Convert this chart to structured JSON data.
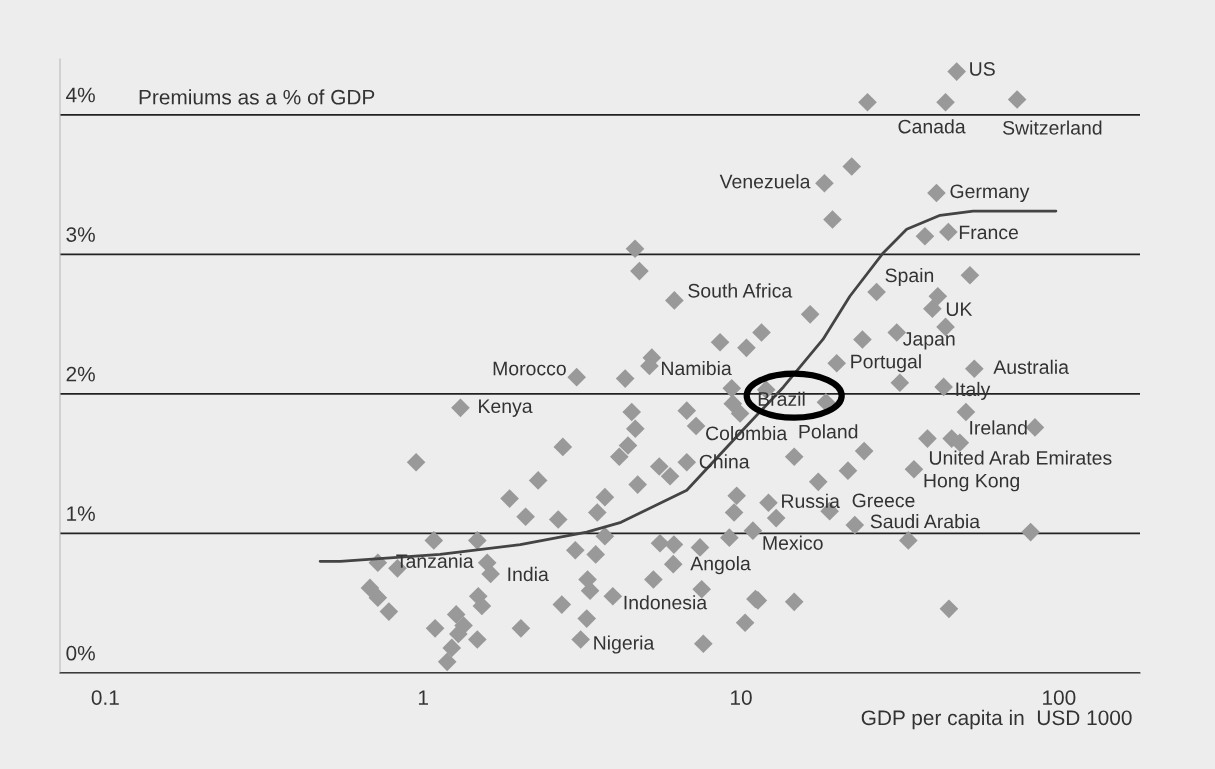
{
  "chart_data": {
    "type": "scatter",
    "ylabel": "Premiums as a % of GDP",
    "xlabel": "GDP per capita in  USD 1000",
    "log": "x",
    "grid": "y",
    "marker": "diamond",
    "xlim": [
      0.072,
      180
    ],
    "xticks": [
      0.1,
      1,
      10,
      100
    ],
    "ylim": [
      0,
      4.4
    ],
    "yticks": [
      {
        "value": 0,
        "label": "0%"
      },
      {
        "value": 1,
        "label": "1%"
      },
      {
        "value": 2,
        "label": "2%"
      },
      {
        "value": 3,
        "label": "3%"
      },
      {
        "value": 4,
        "label": "4%"
      }
    ],
    "series": [
      {
        "color": "#999999",
        "x": [
          1.31,
          4.53,
          6.75,
          9.35,
          9.42,
          9.93,
          7.22,
          4.65,
          2.75,
          4.41,
          4.14,
          0.95,
          5.53,
          5.98,
          6.75,
          2.3,
          4.73,
          3.73,
          1.87,
          3.53,
          9.69,
          9.51,
          2.1,
          2.66,
          10.9,
          1.08,
          1.48,
          3.73,
          9.19,
          5.56,
          6.15,
          7.43,
          3.01,
          3.49,
          0.72,
          0.83,
          1.59,
          1.63,
          6.12,
          3.29,
          3.35,
          5.3,
          7.52,
          11.1,
          0.68,
          0.72,
          0.78,
          1.49,
          1.53,
          2.73,
          3.95,
          3.27,
          1.27,
          1.34,
          1.29,
          1.09,
          2.03,
          1.48,
          1.23,
          1.19,
          3.13,
          7.61,
          10.3,
          12.0,
          18.5,
          14.7,
          24.4,
          21.7,
          17.5,
          35.0,
          38.6,
          46.0,
          48.8,
          51.0,
          84.1,
          12.2,
          12.9,
          19.0,
          22.8,
          33.6,
          81.5,
          11.3,
          14.7,
          45.1,
          43.4,
          31.6,
          47.7,
          25.0,
          44.0,
          73.9,
          22.3,
          18.3,
          41.2,
          19.4,
          37.9,
          44.9,
          52.5,
          26.7,
          41.6,
          40.0,
          44.0,
          30.9,
          24.1,
          20.0,
          54.2,
          16.5,
          11.6,
          10.4,
          4.64,
          4.79,
          6.17,
          8.59,
          5.24,
          5.15,
          4.32,
          3.04
        ],
        "values": [
          1.9,
          1.87,
          1.88,
          2.04,
          1.93,
          1.86,
          1.77,
          1.75,
          1.62,
          1.63,
          1.55,
          1.51,
          1.48,
          1.41,
          1.51,
          1.38,
          1.35,
          1.26,
          1.25,
          1.15,
          1.27,
          1.15,
          1.12,
          1.1,
          1.02,
          0.95,
          0.95,
          0.98,
          0.97,
          0.93,
          0.92,
          0.9,
          0.88,
          0.85,
          0.79,
          0.75,
          0.79,
          0.71,
          0.78,
          0.67,
          0.59,
          0.67,
          0.6,
          0.53,
          0.61,
          0.54,
          0.44,
          0.55,
          0.48,
          0.49,
          0.55,
          0.39,
          0.42,
          0.34,
          0.28,
          0.32,
          0.32,
          0.24,
          0.18,
          0.08,
          0.24,
          0.21,
          0.36,
          2.03,
          1.94,
          1.55,
          1.59,
          1.45,
          1.37,
          1.46,
          1.68,
          1.68,
          1.65,
          1.87,
          1.76,
          1.22,
          1.11,
          1.16,
          1.06,
          0.95,
          1.01,
          0.52,
          0.51,
          0.46,
          2.05,
          2.08,
          4.31,
          4.09,
          4.09,
          4.11,
          3.63,
          3.51,
          3.44,
          3.25,
          3.13,
          3.16,
          2.85,
          2.73,
          2.7,
          2.61,
          2.48,
          2.44,
          2.39,
          2.22,
          2.18,
          2.57,
          2.44,
          2.33,
          3.04,
          2.88,
          2.67,
          2.37,
          2.26,
          2.2,
          2.11,
          2.12
        ]
      },
      {
        "type": "line",
        "color": "#444444",
        "marker": "none",
        "x": [
          0.474,
          0.548,
          1.13,
          2.02,
          3.27,
          4.19,
          6.75,
          9.93,
          13.6,
          18.1,
          22.0,
          28.0,
          33.2,
          42.3,
          53.7,
          97.9
        ],
        "values": [
          0.8,
          0.8,
          0.85,
          0.92,
          1.01,
          1.08,
          1.31,
          1.72,
          2.05,
          2.39,
          2.7,
          3.01,
          3.18,
          3.28,
          3.31,
          3.31
        ]
      }
    ],
    "annotations": [
      {
        "text": "US",
        "x": 47.7,
        "y": 4.31
      },
      {
        "text": "Canada",
        "x": 44.0,
        "y": 4.09
      },
      {
        "text": "Switzerland",
        "x": 73.9,
        "y": 4.11
      },
      {
        "text": "Venezuela",
        "x": 18.3,
        "y": 3.51
      },
      {
        "text": "Germany",
        "x": 41.2,
        "y": 3.44
      },
      {
        "text": "France",
        "x": 44.9,
        "y": 3.16
      },
      {
        "text": "Spain",
        "x": 26.7,
        "y": 2.73
      },
      {
        "text": "UK",
        "x": 40.0,
        "y": 2.61
      },
      {
        "text": "Japan",
        "x": 30.9,
        "y": 2.44
      },
      {
        "text": "Portugal",
        "x": 20.0,
        "y": 2.22
      },
      {
        "text": "Australia",
        "x": 54.2,
        "y": 2.18
      },
      {
        "text": "Italy",
        "x": 43.4,
        "y": 2.05
      },
      {
        "text": "Ireland",
        "x": 84.1,
        "y": 1.76
      },
      {
        "text": "United Arab Emirates",
        "x": 38.6,
        "y": 1.68
      },
      {
        "text": "Hong Kong",
        "x": 35.0,
        "y": 1.46
      },
      {
        "text": "Saudi Arabia",
        "x": 22.8,
        "y": 1.06
      },
      {
        "text": "Russia",
        "x": 12.2,
        "y": 1.22
      },
      {
        "text": "Greece",
        "x": 19.0,
        "y": 1.16
      },
      {
        "text": "Mexico",
        "x": 10.9,
        "y": 1.02
      },
      {
        "text": "Angola",
        "x": 6.12,
        "y": 0.78
      },
      {
        "text": "Indonesia",
        "x": 3.95,
        "y": 0.55
      },
      {
        "text": "Nigeria",
        "x": 3.13,
        "y": 0.24
      },
      {
        "text": "India",
        "x": 1.63,
        "y": 0.71
      },
      {
        "text": "Tanzania",
        "x": 0.72,
        "y": 0.79
      },
      {
        "text": "Kenya",
        "x": 1.31,
        "y": 1.9
      },
      {
        "text": "Morocco",
        "x": 3.04,
        "y": 2.12
      },
      {
        "text": "Namibia",
        "x": 5.15,
        "y": 2.2
      },
      {
        "text": "South Africa",
        "x": 6.17,
        "y": 2.67
      },
      {
        "text": "Colombia",
        "x": 7.22,
        "y": 1.77
      },
      {
        "text": "China",
        "x": 6.75,
        "y": 1.51
      },
      {
        "text": "Brazil",
        "x": 12.0,
        "y": 2.03
      },
      {
        "text": "Poland",
        "x": 18.5,
        "y": 1.94
      }
    ]
  }
}
